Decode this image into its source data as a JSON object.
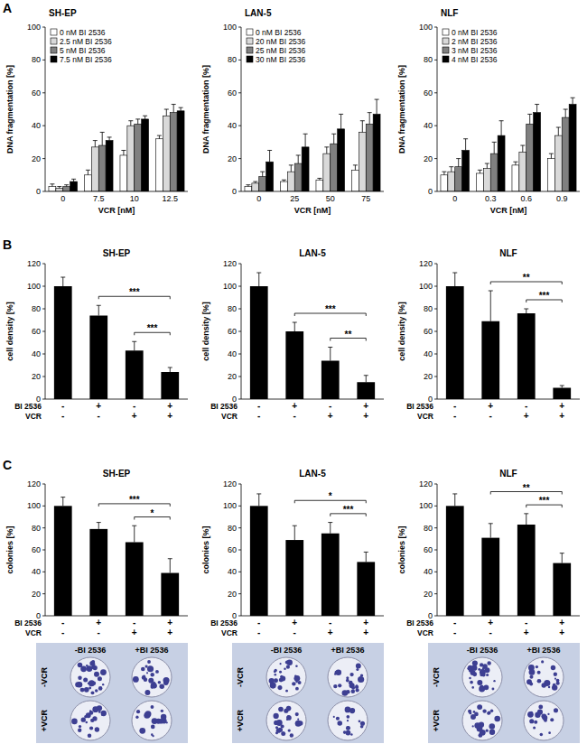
{
  "panel_labels": [
    "A",
    "B",
    "C"
  ],
  "chart_data": [
    {
      "type": "bar",
      "title": "SH-EP",
      "x_label": "VCR [nM]",
      "y_label": "DNA fragmentation [%]",
      "categories": [
        0,
        7.5,
        10,
        12.5
      ],
      "ylim": [
        0,
        100
      ],
      "yticks": [
        0,
        20,
        40,
        60,
        80,
        100
      ],
      "legend": "top-left",
      "series": [
        {
          "name": "0 nM BI 2536",
          "color": "#ffffff",
          "values": [
            3,
            10,
            22,
            32
          ],
          "errors": [
            1.5,
            3,
            3,
            2
          ]
        },
        {
          "name": "2.5 nM BI 2536",
          "color": "#d9d9d9",
          "values": [
            2,
            27,
            40,
            46
          ],
          "errors": [
            1,
            4,
            3,
            4
          ]
        },
        {
          "name": "5 nM BI 2536",
          "color": "#808080",
          "values": [
            3,
            28,
            41,
            48
          ],
          "errors": [
            1,
            8,
            3,
            5
          ]
        },
        {
          "name": "7.5 nM BI 2536",
          "color": "#000000",
          "values": [
            6,
            31,
            44,
            49
          ],
          "errors": [
            1.5,
            2,
            2,
            2
          ]
        }
      ]
    },
    {
      "type": "bar",
      "title": "LAN-5",
      "x_label": "VCR [nM]",
      "y_label": "DNA fragmentation [%]",
      "categories": [
        0,
        25,
        50,
        75
      ],
      "ylim": [
        0,
        100
      ],
      "yticks": [
        0,
        20,
        40,
        60,
        80,
        100
      ],
      "legend": "top-left",
      "series": [
        {
          "name": "0 nM BI 2536",
          "color": "#ffffff",
          "values": [
            3,
            6,
            7,
            13
          ],
          "errors": [
            1,
            1,
            1,
            3
          ]
        },
        {
          "name": "20 nM BI 2536",
          "color": "#d9d9d9",
          "values": [
            5,
            12,
            23,
            36
          ],
          "errors": [
            1,
            4,
            4,
            7
          ]
        },
        {
          "name": "25 nM BI 2536",
          "color": "#808080",
          "values": [
            9,
            17,
            29,
            41
          ],
          "errors": [
            3,
            5,
            6,
            7
          ]
        },
        {
          "name": "30 nM BI 2536",
          "color": "#000000",
          "values": [
            18,
            27,
            38,
            47
          ],
          "errors": [
            7,
            8,
            9,
            9
          ]
        }
      ]
    },
    {
      "type": "bar",
      "title": "NLF",
      "x_label": "VCR [nM]",
      "y_label": "DNA fragmentation [%]",
      "categories": [
        0,
        0.3,
        0.6,
        0.9
      ],
      "ylim": [
        0,
        100
      ],
      "yticks": [
        0,
        20,
        40,
        60,
        80,
        100
      ],
      "legend": "top-left",
      "series": [
        {
          "name": "0 nM BI 2536",
          "color": "#ffffff",
          "values": [
            10,
            11,
            16,
            20
          ],
          "errors": [
            2,
            2,
            2,
            3
          ]
        },
        {
          "name": "2 nM BI 2536",
          "color": "#d9d9d9",
          "values": [
            12,
            14,
            24,
            34
          ],
          "errors": [
            3,
            3,
            4,
            5
          ]
        },
        {
          "name": "3 nM BI 2536",
          "color": "#808080",
          "values": [
            15,
            23,
            41,
            45
          ],
          "errors": [
            5,
            7,
            6,
            5
          ]
        },
        {
          "name": "4 nM BI 2536",
          "color": "#000000",
          "values": [
            25,
            34,
            48,
            53
          ],
          "errors": [
            7,
            9,
            5,
            4
          ]
        }
      ]
    },
    {
      "type": "bar",
      "title": "SH-EP",
      "y_label": "cell density [%]",
      "color": "#000000",
      "category_rows": [
        "BI 2536",
        "VCR"
      ],
      "categories": [
        [
          "-",
          "-"
        ],
        [
          "+",
          "-"
        ],
        [
          "-",
          "+"
        ],
        [
          "+",
          "+"
        ]
      ],
      "values": [
        100,
        74,
        43,
        24
      ],
      "errors": [
        8,
        9,
        8,
        4
      ],
      "ylim": [
        0,
        120
      ],
      "yticks": [
        0,
        20,
        40,
        60,
        80,
        100,
        120
      ],
      "significance": [
        {
          "from": 1,
          "to": 3,
          "label": "***"
        },
        {
          "from": 2,
          "to": 3,
          "label": "***"
        }
      ]
    },
    {
      "type": "bar",
      "title": "LAN-5",
      "y_label": "cell density [%]",
      "color": "#000000",
      "category_rows": [
        "BI 2536",
        "VCR"
      ],
      "categories": [
        [
          "-",
          "-"
        ],
        [
          "+",
          "-"
        ],
        [
          "-",
          "+"
        ],
        [
          "+",
          "+"
        ]
      ],
      "values": [
        100,
        60,
        34,
        15
      ],
      "errors": [
        12,
        8,
        12,
        6
      ],
      "ylim": [
        0,
        120
      ],
      "yticks": [
        0,
        20,
        40,
        60,
        80,
        100,
        120
      ],
      "significance": [
        {
          "from": 1,
          "to": 3,
          "label": "***"
        },
        {
          "from": 2,
          "to": 3,
          "label": "**"
        }
      ]
    },
    {
      "type": "bar",
      "title": "NLF",
      "y_label": "cell density [%]",
      "color": "#000000",
      "category_rows": [
        "BI 2536",
        "VCR"
      ],
      "categories": [
        [
          "-",
          "-"
        ],
        [
          "+",
          "-"
        ],
        [
          "-",
          "+"
        ],
        [
          "+",
          "+"
        ]
      ],
      "values": [
        100,
        69,
        76,
        10
      ],
      "errors": [
        12,
        27,
        4,
        2
      ],
      "ylim": [
        0,
        120
      ],
      "yticks": [
        0,
        20,
        40,
        60,
        80,
        100,
        120
      ],
      "significance": [
        {
          "from": 1,
          "to": 3,
          "label": "**"
        },
        {
          "from": 2,
          "to": 3,
          "label": "***"
        }
      ]
    },
    {
      "type": "bar",
      "title": "SH-EP",
      "y_label": "colonies [%]",
      "color": "#000000",
      "category_rows": [
        "BI 2536",
        "VCR"
      ],
      "categories": [
        [
          "-",
          "-"
        ],
        [
          "+",
          "-"
        ],
        [
          "-",
          "+"
        ],
        [
          "+",
          "+"
        ]
      ],
      "values": [
        100,
        79,
        67,
        39
      ],
      "errors": [
        8,
        6,
        15,
        13
      ],
      "ylim": [
        0,
        120
      ],
      "yticks": [
        0,
        20,
        40,
        60,
        80,
        100,
        120
      ],
      "significance": [
        {
          "from": 1,
          "to": 3,
          "label": "***"
        },
        {
          "from": 2,
          "to": 3,
          "label": "*"
        }
      ],
      "plates": {
        "columns": [
          "-BI 2536",
          "+BI 2536"
        ],
        "rows": [
          "-VCR",
          "+VCR"
        ]
      }
    },
    {
      "type": "bar",
      "title": "LAN-5",
      "y_label": "colonies [%]",
      "color": "#000000",
      "category_rows": [
        "BI 2536",
        "VCR"
      ],
      "categories": [
        [
          "-",
          "-"
        ],
        [
          "+",
          "-"
        ],
        [
          "-",
          "+"
        ],
        [
          "+",
          "+"
        ]
      ],
      "values": [
        100,
        69,
        75,
        49
      ],
      "errors": [
        11,
        13,
        10,
        9
      ],
      "ylim": [
        0,
        120
      ],
      "yticks": [
        0,
        20,
        40,
        60,
        80,
        100,
        120
      ],
      "significance": [
        {
          "from": 1,
          "to": 3,
          "label": "*"
        },
        {
          "from": 2,
          "to": 3,
          "label": "***"
        }
      ],
      "plates": {
        "columns": [
          "-BI 2536",
          "+BI 2536"
        ],
        "rows": [
          "-VCR",
          "+VCR"
        ]
      }
    },
    {
      "type": "bar",
      "title": "NLF",
      "y_label": "colonies [%]",
      "color": "#000000",
      "category_rows": [
        "BI 2536",
        "VCR"
      ],
      "categories": [
        [
          "-",
          "-"
        ],
        [
          "+",
          "-"
        ],
        [
          "-",
          "+"
        ],
        [
          "+",
          "+"
        ]
      ],
      "values": [
        100,
        71,
        83,
        48
      ],
      "errors": [
        11,
        13,
        10,
        9
      ],
      "ylim": [
        0,
        120
      ],
      "yticks": [
        0,
        20,
        40,
        60,
        80,
        100,
        120
      ],
      "significance": [
        {
          "from": 1,
          "to": 3,
          "label": "**"
        },
        {
          "from": 2,
          "to": 3,
          "label": "***"
        }
      ],
      "plates": {
        "columns": [
          "-BI 2536",
          "+BI 2536"
        ],
        "rows": [
          "-VCR",
          "+VCR"
        ]
      }
    }
  ]
}
